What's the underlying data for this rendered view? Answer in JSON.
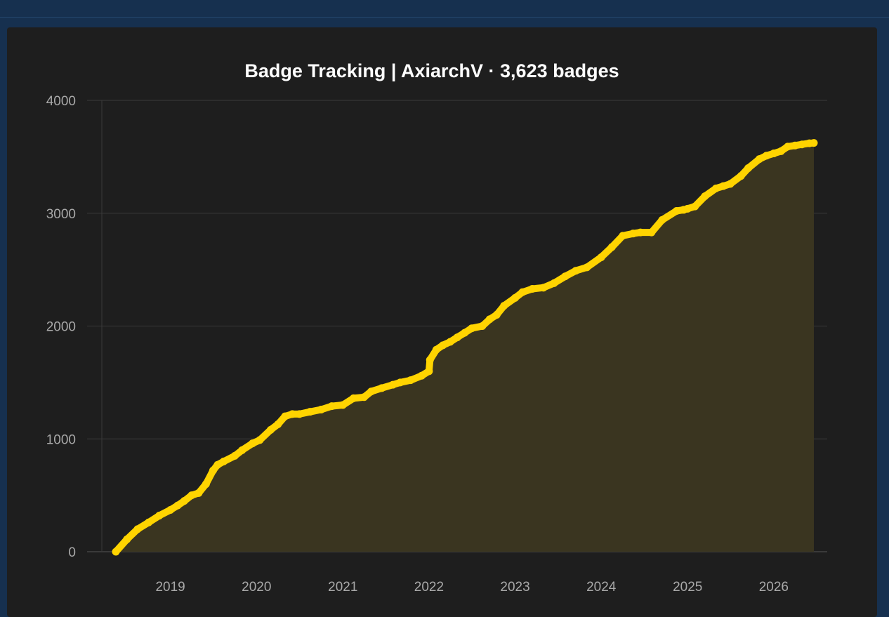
{
  "colors": {
    "page_bg": "#16304f",
    "card_bg": "#1e1e1e",
    "line": "#ffd400",
    "area": "#3a3520",
    "grid": "#3a3a3a",
    "axis_text": "#a9a9a9"
  },
  "chart_data": {
    "type": "line",
    "title": "Badge Tracking | AxiarchV · 3,623 badges",
    "xlabel": "",
    "ylabel": "",
    "ylim": [
      0,
      4000
    ],
    "yticks": [
      "0",
      "1000",
      "2000",
      "3000",
      "4000"
    ],
    "xticks": [
      "2019",
      "2020",
      "2021",
      "2022",
      "2023",
      "2024",
      "2025",
      "2026"
    ],
    "grid": true,
    "legend": "none",
    "fill_area": true,
    "series": [
      {
        "x": [
          "2018-05-15",
          "2018-07-01",
          "2018-08-15",
          "2018-10-01",
          "2018-11-15",
          "2019-01-01",
          "2019-02-01",
          "2019-03-01",
          "2019-04-01",
          "2019-05-01",
          "2019-06-01",
          "2019-07-01",
          "2019-07-20",
          "2019-08-15",
          "2019-10-01",
          "2019-11-01",
          "2019-12-15",
          "2020-01-15",
          "2020-03-01",
          "2020-04-01",
          "2020-05-01",
          "2020-06-01",
          "2020-07-01",
          "2020-08-15",
          "2020-10-01",
          "2020-11-15",
          "2021-01-01",
          "2021-02-15",
          "2021-04-01",
          "2021-05-01",
          "2021-06-15",
          "2021-08-01",
          "2021-09-01",
          "2021-10-15",
          "2021-12-01",
          "2022-01-01",
          "2022-01-05",
          "2022-02-01",
          "2022-03-01",
          "2022-04-01",
          "2022-05-01",
          "2022-06-01",
          "2022-07-01",
          "2022-08-15",
          "2022-09-15",
          "2022-10-15",
          "2022-11-15",
          "2023-01-01",
          "2023-02-01",
          "2023-03-15",
          "2023-05-01",
          "2023-06-15",
          "2023-08-01",
          "2023-09-15",
          "2023-11-01",
          "2024-01-01",
          "2024-02-15",
          "2024-04-01",
          "2024-05-15",
          "2024-06-15",
          "2024-08-01",
          "2024-09-15",
          "2024-11-15",
          "2024-12-15",
          "2025-01-01",
          "2025-02-01",
          "2025-03-15",
          "2025-05-01",
          "2025-06-01",
          "2025-07-01",
          "2025-08-15",
          "2025-09-15",
          "2025-11-01",
          "2025-12-01",
          "2026-01-01",
          "2026-02-01",
          "2026-03-01",
          "2026-04-01",
          "2026-05-01",
          "2026-06-01",
          "2026-06-20"
        ],
        "y": [
          0,
          110,
          200,
          260,
          320,
          370,
          410,
          450,
          500,
          520,
          600,
          720,
          770,
          800,
          850,
          900,
          960,
          990,
          1080,
          1130,
          1200,
          1220,
          1220,
          1240,
          1260,
          1290,
          1300,
          1360,
          1370,
          1420,
          1450,
          1480,
          1500,
          1520,
          1560,
          1600,
          1700,
          1790,
          1830,
          1860,
          1900,
          1940,
          1980,
          2000,
          2060,
          2100,
          2180,
          2250,
          2300,
          2330,
          2340,
          2380,
          2440,
          2490,
          2520,
          2610,
          2700,
          2800,
          2820,
          2830,
          2830,
          2940,
          3020,
          3030,
          3040,
          3060,
          3150,
          3220,
          3240,
          3260,
          3330,
          3400,
          3480,
          3510,
          3530,
          3550,
          3590,
          3600,
          3610,
          3620,
          3623
        ]
      }
    ]
  }
}
